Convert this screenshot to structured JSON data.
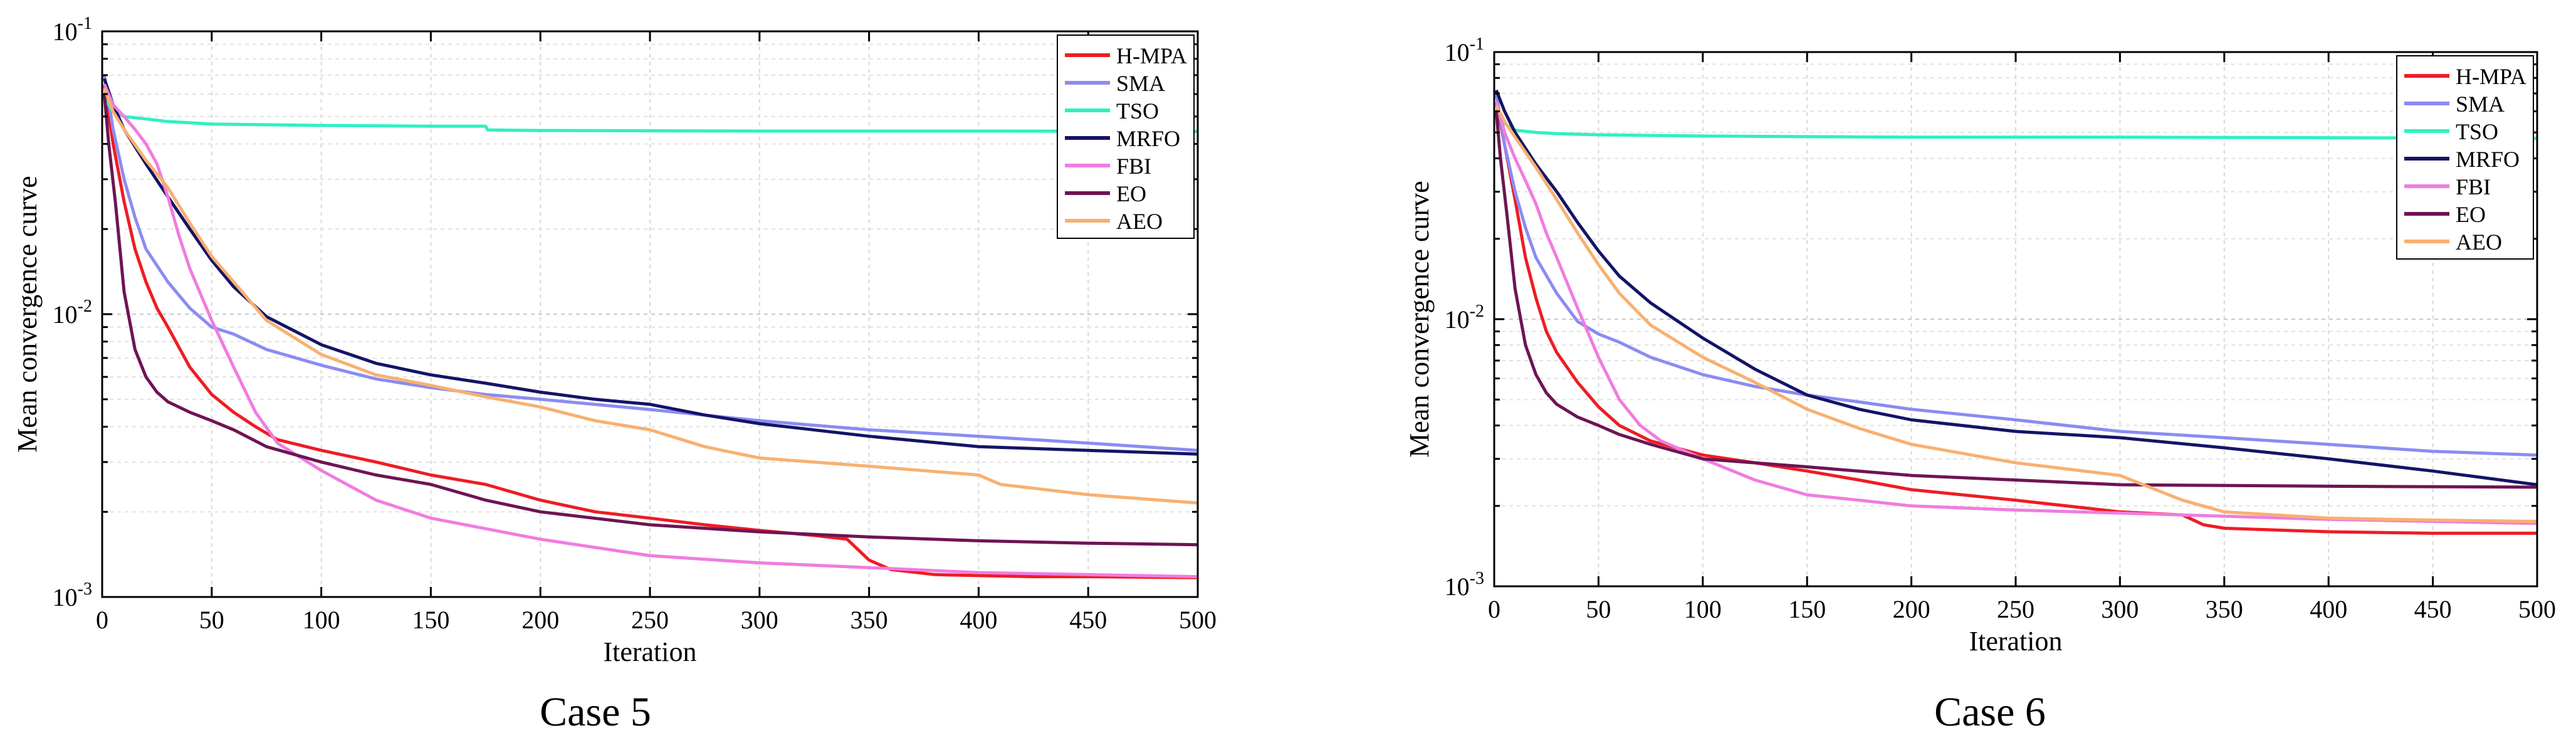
{
  "captions": {
    "left": "Case 5",
    "right": "Case 6"
  },
  "colors": {
    "H-MPA": "#ef1c24",
    "SMA": "#8a8cf2",
    "TSO": "#2ff0c2",
    "MRFO": "#141466",
    "FBI": "#f07ce0",
    "EO": "#6e1454",
    "AEO": "#f8b070"
  },
  "chart_data": [
    {
      "type": "line",
      "title": "",
      "caption": "Case 5",
      "xlabel": "Iteration",
      "ylabel": "Mean convergence curve",
      "xlim": [
        0,
        500
      ],
      "ylim": [
        0.001,
        0.1
      ],
      "yscale": "log",
      "grid": true,
      "legend_position": "top-right",
      "xticks": [
        0,
        50,
        100,
        150,
        200,
        250,
        300,
        350,
        400,
        450,
        500
      ],
      "yticks": [
        {
          "value": 0.001,
          "base": "10",
          "exp": "-3"
        },
        {
          "value": 0.01,
          "base": "10",
          "exp": "-2"
        },
        {
          "value": 0.1,
          "base": "10",
          "exp": "-1"
        }
      ],
      "series": [
        {
          "name": "H-MPA",
          "x": [
            1,
            5,
            10,
            15,
            20,
            25,
            30,
            40,
            50,
            60,
            70,
            80,
            100,
            125,
            150,
            175,
            200,
            225,
            250,
            275,
            300,
            325,
            340,
            350,
            360,
            380,
            400,
            425,
            450,
            500
          ],
          "y": [
            0.065,
            0.04,
            0.025,
            0.017,
            0.013,
            0.0105,
            0.009,
            0.0065,
            0.0052,
            0.0045,
            0.004,
            0.0036,
            0.0033,
            0.003,
            0.0027,
            0.0025,
            0.0022,
            0.002,
            0.0019,
            0.0018,
            0.00172,
            0.00165,
            0.0016,
            0.00135,
            0.00125,
            0.0012,
            0.00119,
            0.00118,
            0.00118,
            0.00117
          ]
        },
        {
          "name": "SMA",
          "x": [
            1,
            5,
            10,
            15,
            20,
            30,
            40,
            50,
            60,
            75,
            100,
            125,
            150,
            175,
            200,
            250,
            300,
            350,
            400,
            450,
            500
          ],
          "y": [
            0.07,
            0.045,
            0.03,
            0.022,
            0.017,
            0.013,
            0.0105,
            0.009,
            0.0085,
            0.0075,
            0.0066,
            0.0059,
            0.0055,
            0.0052,
            0.005,
            0.0046,
            0.0042,
            0.0039,
            0.0037,
            0.0035,
            0.0033
          ]
        },
        {
          "name": "TSO",
          "x": [
            1,
            5,
            10,
            20,
            30,
            50,
            100,
            150,
            175,
            176,
            200,
            300,
            400,
            500
          ],
          "y": [
            0.058,
            0.052,
            0.05,
            0.049,
            0.048,
            0.047,
            0.0465,
            0.0462,
            0.0462,
            0.0448,
            0.0446,
            0.0444,
            0.0444,
            0.0443
          ]
        },
        {
          "name": "MRFO",
          "x": [
            1,
            5,
            10,
            20,
            30,
            40,
            50,
            60,
            75,
            100,
            125,
            150,
            175,
            200,
            225,
            250,
            275,
            300,
            350,
            400,
            450,
            500
          ],
          "y": [
            0.068,
            0.055,
            0.045,
            0.034,
            0.026,
            0.02,
            0.0155,
            0.0125,
            0.0098,
            0.0078,
            0.0067,
            0.0061,
            0.0057,
            0.0053,
            0.005,
            0.0048,
            0.0044,
            0.0041,
            0.0037,
            0.0034,
            0.0033,
            0.0032
          ]
        },
        {
          "name": "FBI",
          "x": [
            1,
            5,
            10,
            15,
            20,
            25,
            30,
            35,
            40,
            50,
            60,
            70,
            80,
            100,
            125,
            150,
            200,
            250,
            300,
            350,
            400,
            500
          ],
          "y": [
            0.065,
            0.055,
            0.05,
            0.045,
            0.04,
            0.034,
            0.026,
            0.019,
            0.0145,
            0.0095,
            0.0065,
            0.0045,
            0.0035,
            0.0028,
            0.0022,
            0.0019,
            0.0016,
            0.0014,
            0.00132,
            0.00127,
            0.00122,
            0.00118
          ]
        },
        {
          "name": "EO",
          "x": [
            1,
            3,
            6,
            10,
            15,
            20,
            25,
            30,
            40,
            50,
            60,
            75,
            100,
            125,
            150,
            175,
            200,
            250,
            300,
            350,
            400,
            450,
            500
          ],
          "y": [
            0.06,
            0.04,
            0.025,
            0.012,
            0.0075,
            0.006,
            0.0053,
            0.0049,
            0.0045,
            0.0042,
            0.0039,
            0.0034,
            0.003,
            0.0027,
            0.0025,
            0.0022,
            0.002,
            0.0018,
            0.0017,
            0.00163,
            0.00158,
            0.00155,
            0.00153
          ]
        },
        {
          "name": "AEO",
          "x": [
            1,
            5,
            10,
            20,
            30,
            40,
            50,
            60,
            75,
            100,
            125,
            150,
            175,
            200,
            225,
            250,
            275,
            300,
            350,
            400,
            410,
            450,
            500
          ],
          "y": [
            0.063,
            0.052,
            0.045,
            0.035,
            0.028,
            0.021,
            0.016,
            0.013,
            0.0095,
            0.0072,
            0.0061,
            0.0056,
            0.0051,
            0.0047,
            0.0042,
            0.0039,
            0.0034,
            0.0031,
            0.0029,
            0.0027,
            0.0025,
            0.0023,
            0.00215
          ]
        }
      ]
    },
    {
      "type": "line",
      "title": "",
      "caption": "Case 6",
      "xlabel": "Iteration",
      "ylabel": "Mean convergence curve",
      "xlim": [
        0,
        500
      ],
      "ylim": [
        0.001,
        0.1
      ],
      "yscale": "log",
      "grid": true,
      "legend_position": "top-right",
      "xticks": [
        0,
        50,
        100,
        150,
        200,
        250,
        300,
        350,
        400,
        450,
        500
      ],
      "yticks": [
        {
          "value": 0.001,
          "base": "10",
          "exp": "-3"
        },
        {
          "value": 0.01,
          "base": "10",
          "exp": "-2"
        },
        {
          "value": 0.1,
          "base": "10",
          "exp": "-1"
        }
      ],
      "series": [
        {
          "name": "H-MPA",
          "x": [
            1,
            5,
            10,
            15,
            20,
            25,
            30,
            40,
            50,
            60,
            75,
            100,
            125,
            150,
            175,
            200,
            250,
            300,
            330,
            340,
            350,
            400,
            450,
            500
          ],
          "y": [
            0.065,
            0.045,
            0.028,
            0.017,
            0.012,
            0.009,
            0.0075,
            0.0058,
            0.0047,
            0.004,
            0.0035,
            0.0031,
            0.0029,
            0.0027,
            0.0025,
            0.0023,
            0.0021,
            0.0019,
            0.00185,
            0.0017,
            0.00165,
            0.0016,
            0.00158,
            0.00158
          ]
        },
        {
          "name": "SMA",
          "x": [
            1,
            5,
            10,
            15,
            20,
            30,
            40,
            50,
            60,
            75,
            100,
            125,
            150,
            175,
            200,
            250,
            300,
            350,
            400,
            450,
            500
          ],
          "y": [
            0.07,
            0.045,
            0.03,
            0.022,
            0.017,
            0.0125,
            0.0098,
            0.0088,
            0.0082,
            0.0072,
            0.0062,
            0.0056,
            0.0052,
            0.0049,
            0.0046,
            0.0042,
            0.0038,
            0.0036,
            0.0034,
            0.0032,
            0.0031
          ]
        },
        {
          "name": "TSO",
          "x": [
            1,
            5,
            10,
            20,
            30,
            50,
            100,
            200,
            300,
            400,
            500
          ],
          "y": [
            0.06,
            0.054,
            0.051,
            0.05,
            0.0495,
            0.049,
            0.0485,
            0.048,
            0.048,
            0.0478,
            0.0475
          ]
        },
        {
          "name": "MRFO",
          "x": [
            1,
            5,
            10,
            20,
            30,
            40,
            50,
            60,
            75,
            100,
            125,
            150,
            175,
            200,
            250,
            300,
            350,
            400,
            450,
            500
          ],
          "y": [
            0.072,
            0.06,
            0.05,
            0.038,
            0.03,
            0.023,
            0.018,
            0.0145,
            0.0115,
            0.0085,
            0.0065,
            0.0052,
            0.0046,
            0.0042,
            0.0038,
            0.0036,
            0.0033,
            0.003,
            0.0027,
            0.0024
          ]
        },
        {
          "name": "FBI",
          "x": [
            1,
            5,
            10,
            15,
            20,
            25,
            30,
            40,
            50,
            60,
            70,
            80,
            100,
            125,
            150,
            175,
            200,
            250,
            300,
            350,
            400,
            500
          ],
          "y": [
            0.065,
            0.05,
            0.04,
            0.033,
            0.027,
            0.021,
            0.017,
            0.011,
            0.0072,
            0.005,
            0.004,
            0.0035,
            0.003,
            0.0025,
            0.0022,
            0.0021,
            0.002,
            0.00193,
            0.00188,
            0.00183,
            0.00178,
            0.00172
          ]
        },
        {
          "name": "EO",
          "x": [
            1,
            3,
            6,
            10,
            15,
            20,
            25,
            30,
            40,
            50,
            60,
            75,
            100,
            150,
            200,
            250,
            300,
            400,
            500
          ],
          "y": [
            0.06,
            0.04,
            0.025,
            0.013,
            0.008,
            0.0062,
            0.0053,
            0.0048,
            0.0043,
            0.004,
            0.0037,
            0.0034,
            0.003,
            0.0028,
            0.0026,
            0.0025,
            0.0024,
            0.00237,
            0.00235
          ]
        },
        {
          "name": "AEO",
          "x": [
            1,
            5,
            10,
            20,
            30,
            40,
            50,
            60,
            75,
            100,
            125,
            150,
            175,
            200,
            250,
            300,
            330,
            350,
            400,
            450,
            500
          ],
          "y": [
            0.063,
            0.055,
            0.048,
            0.037,
            0.028,
            0.021,
            0.016,
            0.0125,
            0.0095,
            0.0072,
            0.0058,
            0.0046,
            0.0039,
            0.0034,
            0.0029,
            0.0026,
            0.0021,
            0.0019,
            0.0018,
            0.00177,
            0.00175
          ]
        }
      ]
    }
  ]
}
